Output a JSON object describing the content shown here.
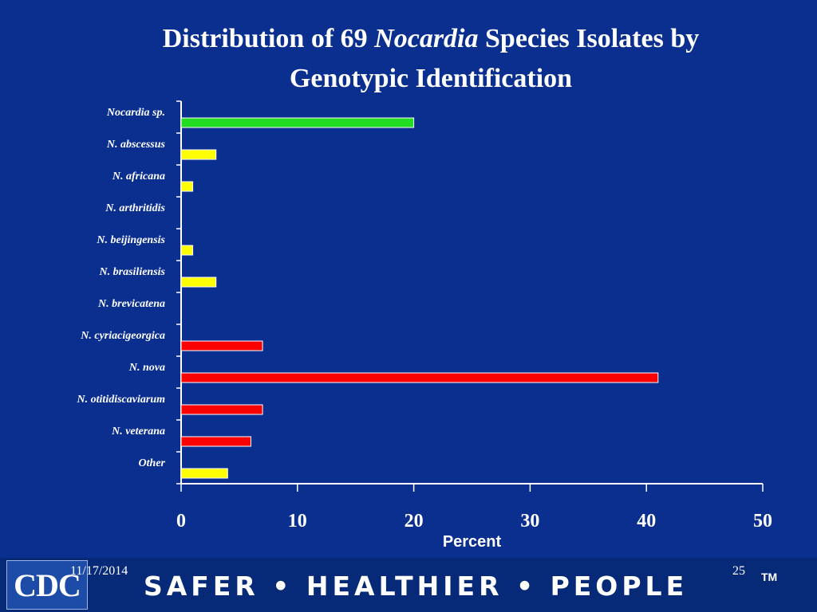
{
  "title": {
    "part1": "Distribution of 69 ",
    "italic": "Nocardia",
    "part2": " Species Isolates by",
    "line2": "Genotypic Identification"
  },
  "chart_data": {
    "type": "bar",
    "orientation": "horizontal",
    "categories": [
      "Nocardia sp.",
      "N. abscessus",
      "N. africana",
      "N. arthritidis",
      "N. beijingensis",
      "N. brasiliensis",
      "N. brevicatena",
      "N. cyriacigeorgica",
      "N. nova",
      "N. otitidiscaviarum",
      "N. veterana",
      "Other"
    ],
    "values": [
      20,
      3,
      1,
      0,
      1,
      3,
      0,
      7,
      41,
      7,
      6,
      4
    ],
    "bar_colors": [
      "#22dd22",
      "#ffff00",
      "#ffff00",
      "#ffff00",
      "#ffff00",
      "#ffff00",
      "#ffff00",
      "#ff0000",
      "#ff0000",
      "#ff0000",
      "#ff0000",
      "#ffff00"
    ],
    "xlabel": "Percent",
    "xlim": [
      0,
      50
    ],
    "xticks": [
      0,
      10,
      20,
      30,
      40,
      50
    ],
    "grid": false,
    "legend": "none"
  },
  "footer": {
    "logo_text": "CDC",
    "date": "11/17/2014",
    "page": "25",
    "slogan": "SAFER • HEALTHIER • PEOPLE",
    "trademark": "TM"
  }
}
